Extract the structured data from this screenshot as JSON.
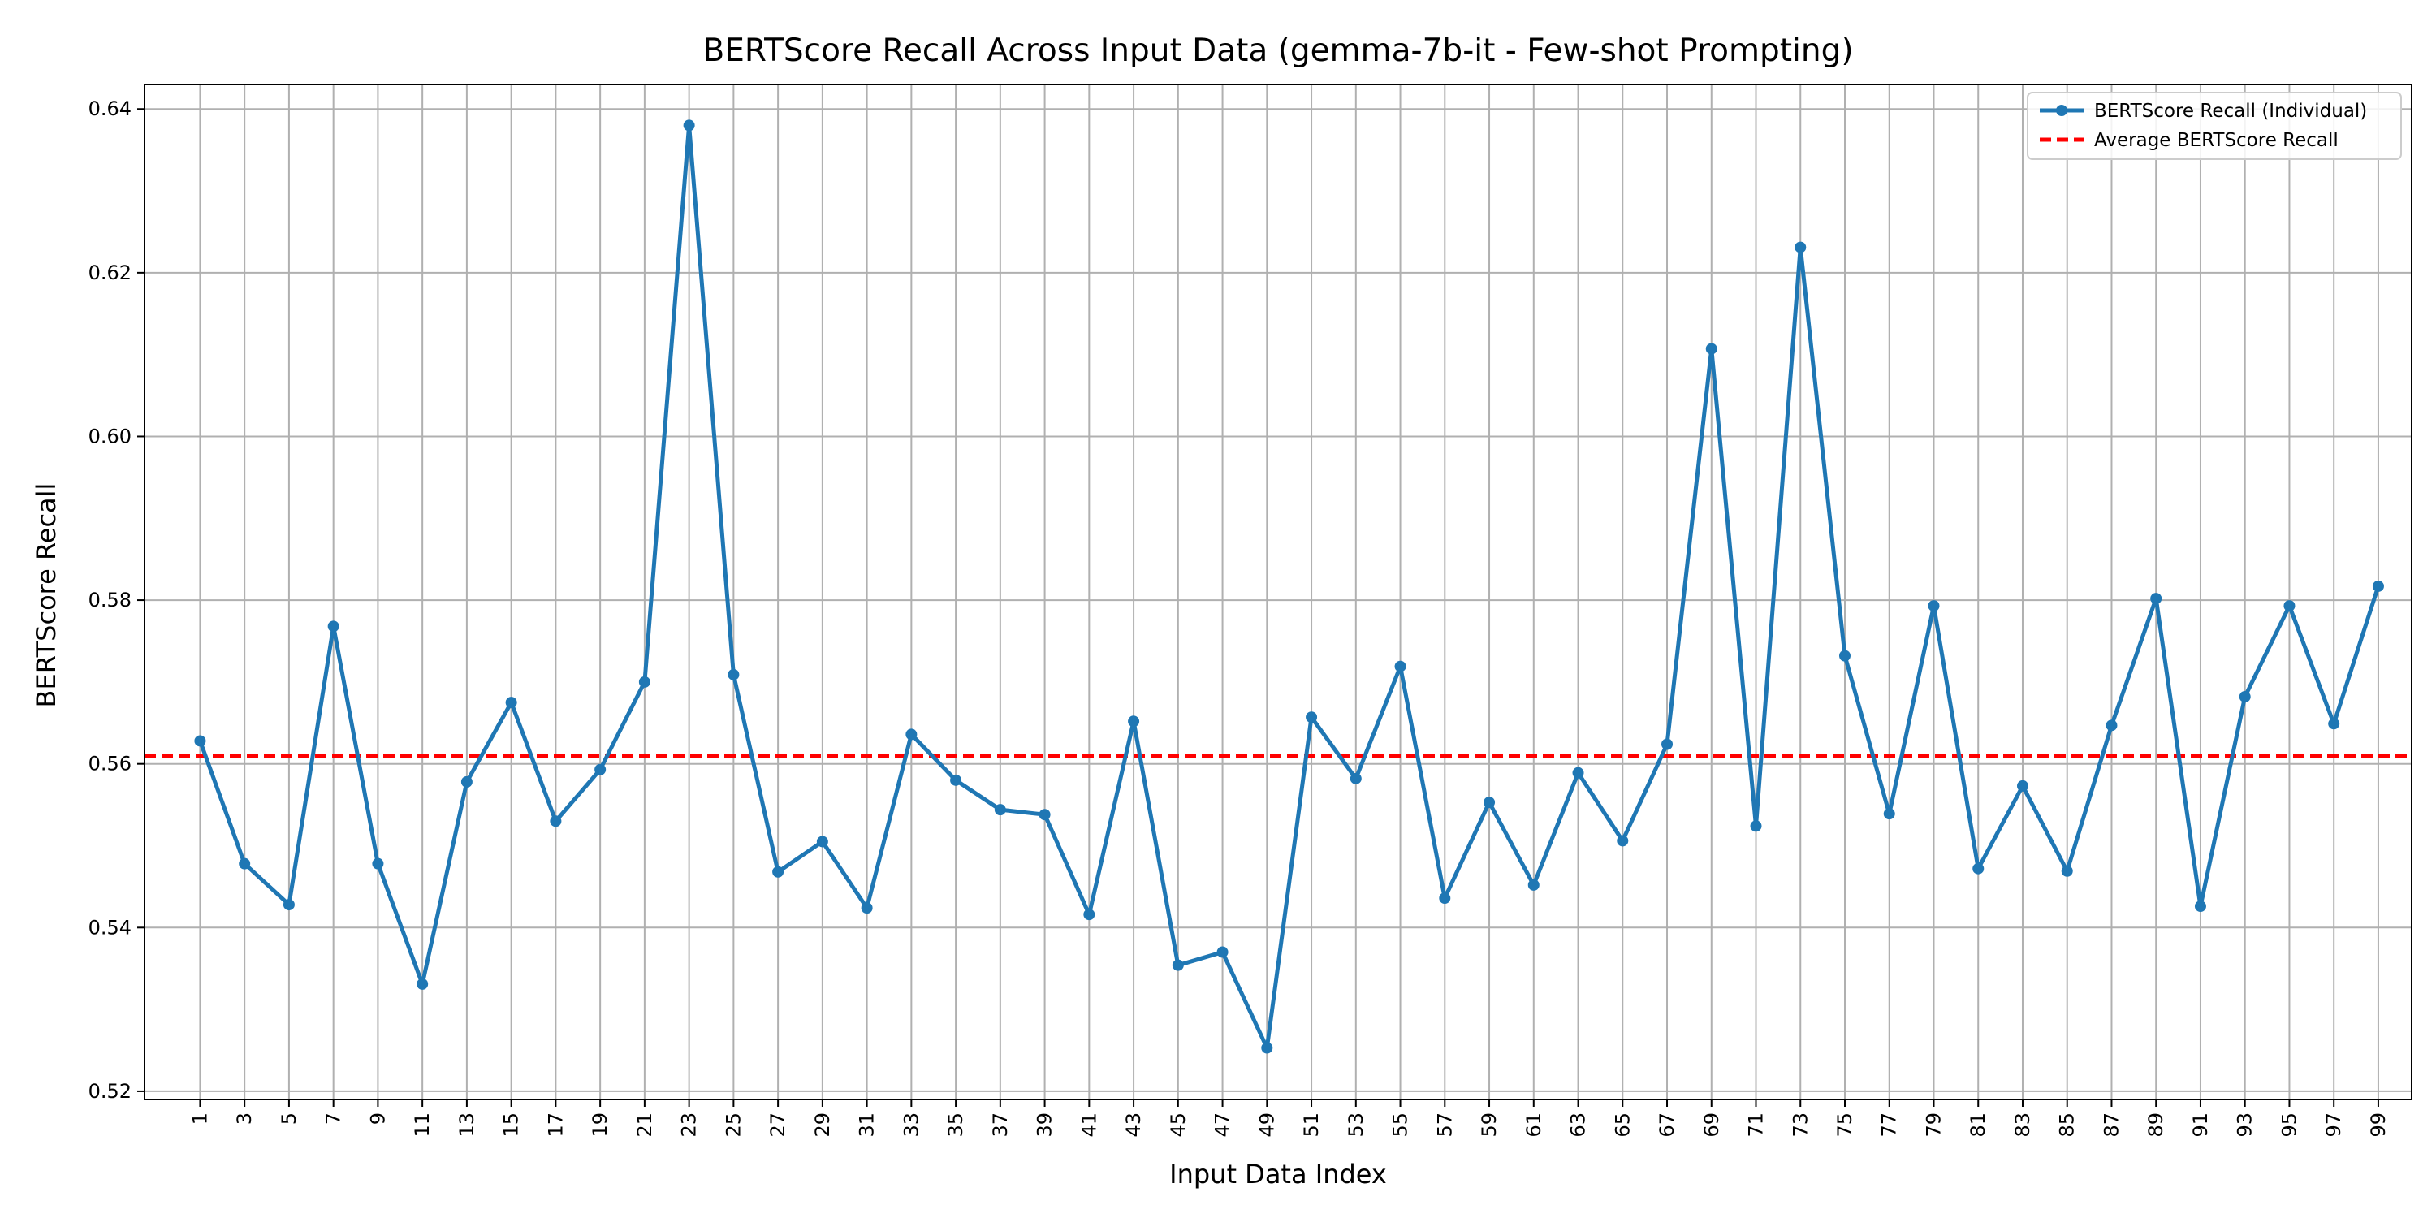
{
  "chart_data": {
    "type": "line",
    "title": "BERTScore Recall Across Input Data (gemma-7b-it - Few-shot Prompting)",
    "xlabel": "Input Data Index",
    "ylabel": "BERTScore Recall",
    "xlim": [
      -1.5,
      100.5
    ],
    "ylim": [
      0.519,
      0.643
    ],
    "x_ticks": [
      1,
      3,
      5,
      7,
      9,
      11,
      13,
      15,
      17,
      19,
      21,
      23,
      25,
      27,
      29,
      31,
      33,
      35,
      37,
      39,
      41,
      43,
      45,
      47,
      49,
      51,
      53,
      55,
      57,
      59,
      61,
      63,
      65,
      67,
      69,
      71,
      73,
      75,
      77,
      79,
      81,
      83,
      85,
      87,
      89,
      91,
      93,
      95,
      97,
      99
    ],
    "y_ticks": [
      "0.52",
      "0.54",
      "0.56",
      "0.58",
      "0.60",
      "0.62",
      "0.64"
    ],
    "grid": true,
    "legend_position": "top-right",
    "series": [
      {
        "name": "BERTScore Recall (Individual)",
        "color": "#1f77b4",
        "style": "solid-line-with-markers",
        "x": [
          1,
          3,
          5,
          7,
          9,
          11,
          13,
          15,
          17,
          19,
          21,
          23,
          25,
          27,
          29,
          31,
          33,
          35,
          37,
          39,
          41,
          43,
          45,
          47,
          49,
          51,
          53,
          55,
          57,
          59,
          61,
          63,
          65,
          67,
          69,
          71,
          73,
          75,
          77,
          79,
          81,
          83,
          85,
          87,
          89,
          91,
          93,
          95,
          97,
          99
        ],
        "y": [
          0.5628,
          0.5478,
          0.5428,
          0.5768,
          0.5478,
          0.5331,
          0.5578,
          0.5675,
          0.553,
          0.5593,
          0.57,
          0.638,
          0.5709,
          0.5468,
          0.5505,
          0.5424,
          0.5636,
          0.558,
          0.5544,
          0.5538,
          0.5416,
          0.5652,
          0.5354,
          0.537,
          0.5253,
          0.5657,
          0.5582,
          0.5719,
          0.5436,
          0.5553,
          0.5452,
          0.5589,
          0.5506,
          0.5624,
          0.6107,
          0.5524,
          0.6231,
          0.5732,
          0.5539,
          0.5793,
          0.5472,
          0.5573,
          0.5469,
          0.5647,
          0.5802,
          0.5426,
          0.5682,
          0.5793,
          0.5649,
          0.5817
        ]
      },
      {
        "name": "Average BERTScore Recall",
        "color": "#ff0000",
        "style": "dashed",
        "y_constant": 0.561
      }
    ]
  }
}
